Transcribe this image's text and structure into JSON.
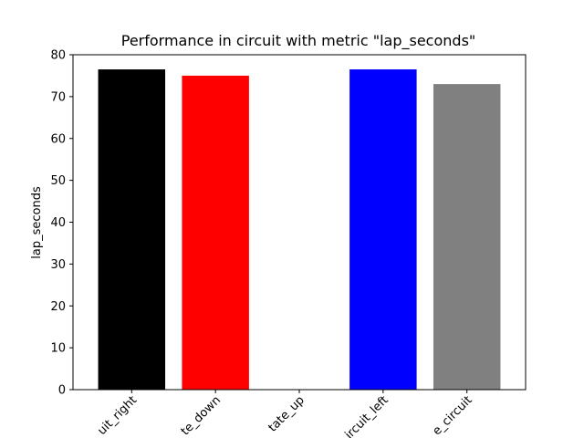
{
  "chart_data": {
    "type": "bar",
    "title": "Performance in circuit with metric \"lap_seconds\"",
    "xlabel": "",
    "ylabel": "lap_seconds",
    "categories": [
      "uit_right",
      "te_down",
      "tate_up",
      "ircuit_left",
      "e_circuit"
    ],
    "values": [
      76.5,
      75.0,
      0,
      76.5,
      73.0
    ],
    "colors": [
      "#000000",
      "#ff0000",
      "#ffffff",
      "#0000ff",
      "#808080"
    ],
    "ylim": [
      0,
      80
    ],
    "yticks": [
      "0",
      "10",
      "20",
      "30",
      "40",
      "50",
      "60",
      "70",
      "80"
    ],
    "grid": false,
    "legend": "none"
  }
}
